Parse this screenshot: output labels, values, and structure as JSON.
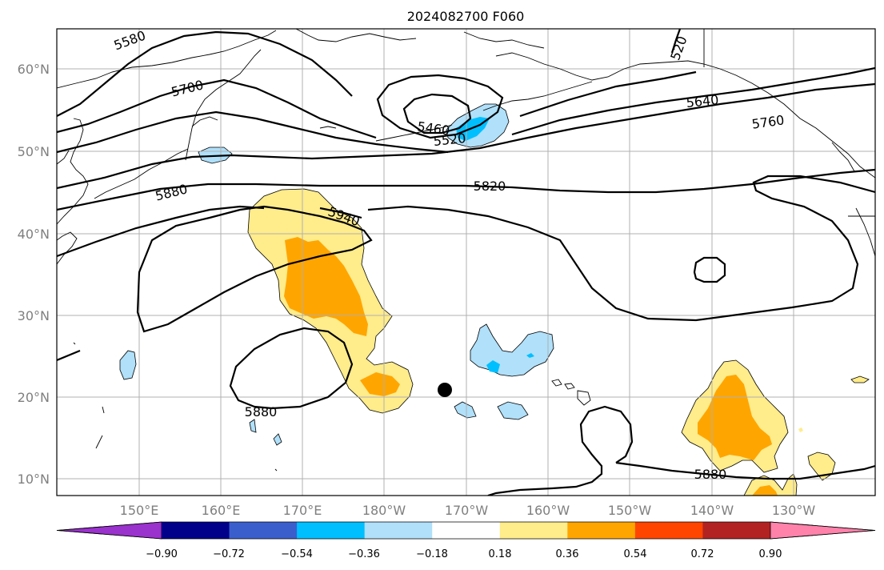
{
  "title": "2024082700 F060",
  "lat_labels": [
    "60°N",
    "50°N",
    "40°N",
    "30°N",
    "20°N",
    "10°N"
  ],
  "lon_labels": [
    "150°E",
    "160°E",
    "170°E",
    "180°W",
    "170°W",
    "160°W",
    "150°W",
    "140°W",
    "130°W"
  ],
  "contour_labels": [
    "5580",
    "5700",
    "5460",
    "5520",
    "5880",
    "5940",
    "5820",
    "5640",
    "5760",
    "520",
    "5880",
    "5880"
  ],
  "colorbar": {
    "ticks": [
      "−0.90",
      "−0.72",
      "−0.54",
      "−0.36",
      "−0.18",
      "0.18",
      "0.36",
      "0.54",
      "0.72",
      "0.90"
    ],
    "colors": [
      "#9a32cd",
      "#00008b",
      "#3a5fcd",
      "#00bfff",
      "#b0e0fa",
      "#ffffff",
      "#ffec8b",
      "#ffa500",
      "#ff4500",
      "#b22222",
      "#ff82ab"
    ]
  },
  "colors": {
    "positive_light": "#ffec8b",
    "positive_medium": "#ffa500",
    "negative_light": "#b0e0fa",
    "negative_medium": "#00bfff",
    "contour": "#000000",
    "grid": "#b0b0b0",
    "tick_text": "#7f7f7f"
  },
  "marker": "storm-position-dot"
}
